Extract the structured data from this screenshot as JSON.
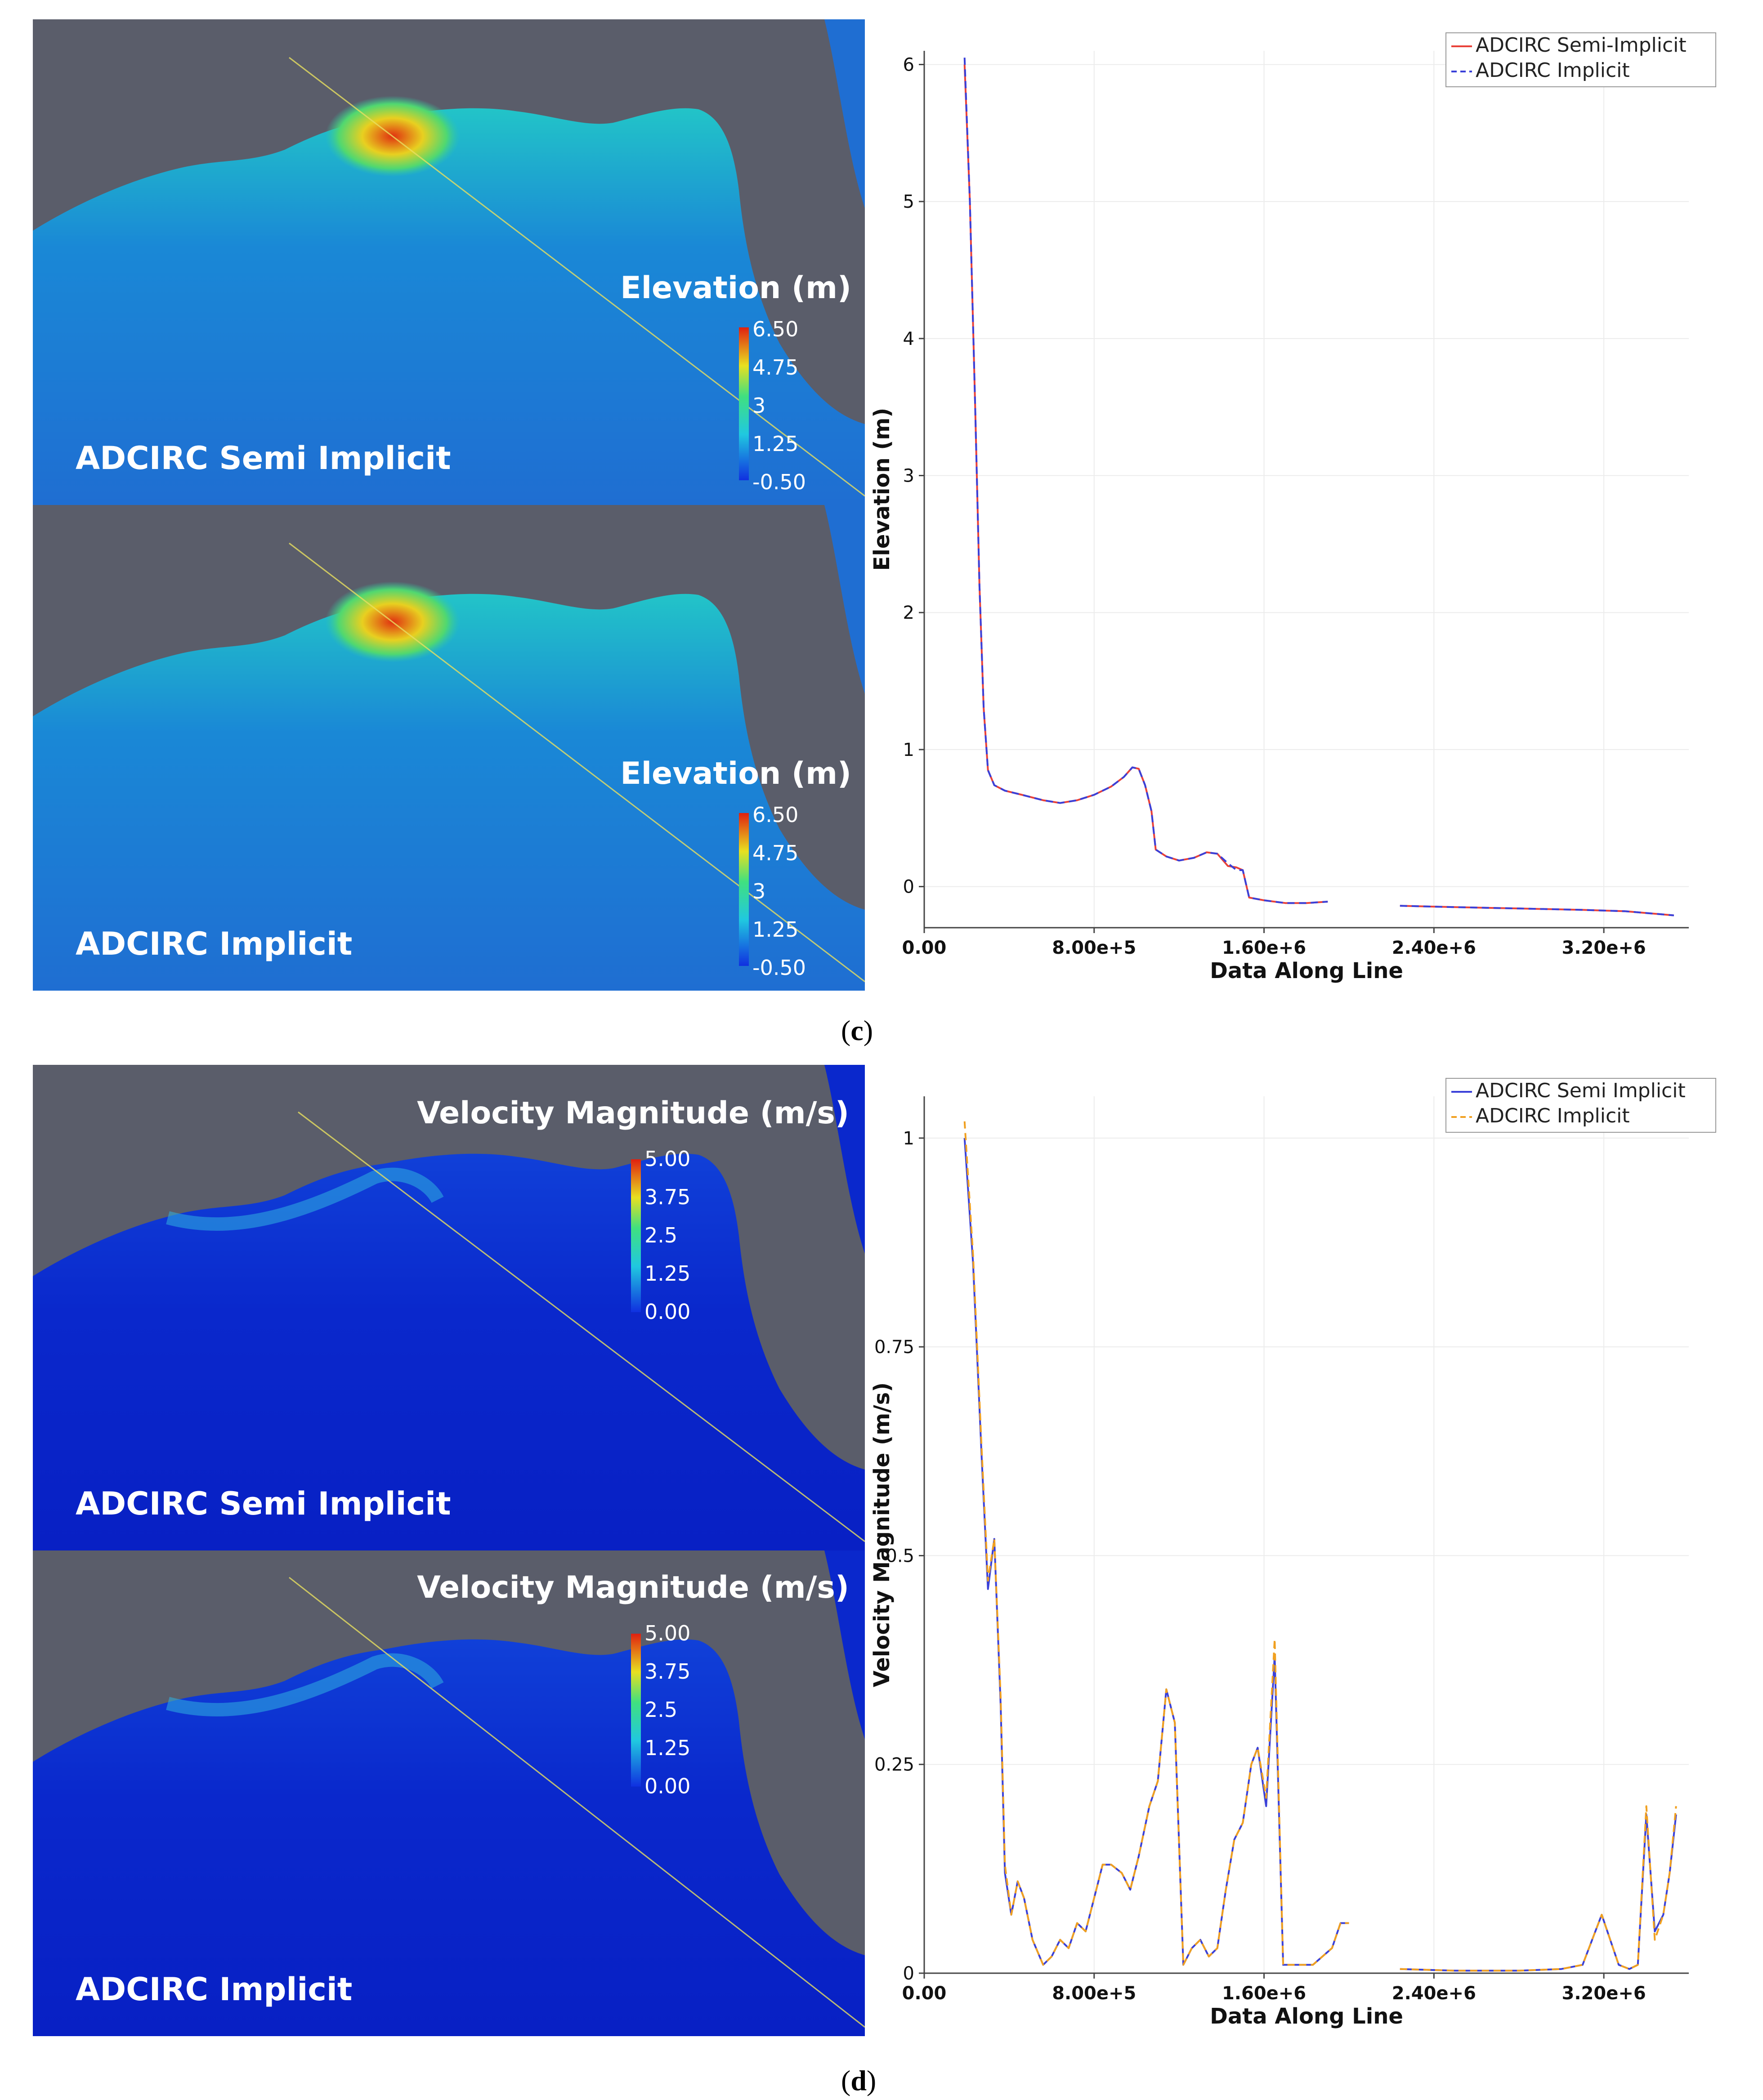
{
  "panels": [
    {
      "id": "c",
      "caption_letter": "c",
      "maps": [
        {
          "name": "ADCIRC Semi Implicit",
          "colorbar_title": "Elevation (m)",
          "ticks": [
            "6.50",
            "4.75",
            "3",
            "1.25",
            "-0.50"
          ]
        },
        {
          "name": "ADCIRC Implicit",
          "colorbar_title": "Elevation (m)",
          "ticks": [
            "6.50",
            "4.75",
            "3",
            "1.25",
            "-0.50"
          ]
        }
      ]
    },
    {
      "id": "d",
      "caption_letter": "d",
      "maps": [
        {
          "name": "ADCIRC Semi Implicit",
          "colorbar_title": "Velocity Magnitude (m/s)",
          "ticks": [
            "5.00",
            "3.75",
            "2.5",
            "1.25",
            "0.00"
          ]
        },
        {
          "name": "ADCIRC Implicit",
          "colorbar_title": "Velocity Magnitude (m/s)",
          "ticks": [
            "5.00",
            "3.75",
            "2.5",
            "1.25",
            "0.00"
          ]
        }
      ]
    }
  ],
  "colors": {
    "land": "#5a5d6a",
    "ocean": "#1b6ed0",
    "ocean_vel": "#0a22c8",
    "red_series": "#e8423a",
    "blue_series": "#3a40d8",
    "orange_series": "#f0a020"
  },
  "chart_data": [
    {
      "type": "line",
      "title": "",
      "xlabel": "Data Along Line",
      "ylabel": "Elevation (m)",
      "xlim": [
        0,
        3600000
      ],
      "ylim": [
        -0.3,
        6.1
      ],
      "xticks": [
        0,
        800000,
        1600000,
        2400000,
        3200000
      ],
      "xtick_labels": [
        "0.00",
        "8.00e+5",
        "1.60e+6",
        "2.40e+6",
        "3.20e+6"
      ],
      "yticks": [
        0,
        1,
        2,
        3,
        4,
        5,
        6
      ],
      "ytick_labels": [
        "0",
        "1",
        "2",
        "3",
        "4",
        "5",
        "6"
      ],
      "grid": true,
      "legend_position": "top-right",
      "series": [
        {
          "name": "ADCIRC Semi-Implicit",
          "color": "#e8423a",
          "dash": "solid",
          "segments": [
            [
              [
                190000,
                6.0
              ],
              [
                215000,
                5.0
              ],
              [
                240000,
                3.5
              ],
              [
                260000,
                2.2
              ],
              [
                280000,
                1.3
              ],
              [
                300000,
                0.85
              ],
              [
                330000,
                0.74
              ],
              [
                380000,
                0.7
              ],
              [
                460000,
                0.67
              ],
              [
                560000,
                0.63
              ],
              [
                640000,
                0.61
              ],
              [
                720000,
                0.63
              ],
              [
                800000,
                0.67
              ],
              [
                880000,
                0.73
              ],
              [
                940000,
                0.8
              ],
              [
                980000,
                0.87
              ],
              [
                1010000,
                0.86
              ],
              [
                1040000,
                0.74
              ],
              [
                1070000,
                0.55
              ],
              [
                1090000,
                0.27
              ],
              [
                1140000,
                0.22
              ],
              [
                1200000,
                0.19
              ],
              [
                1270000,
                0.21
              ],
              [
                1330000,
                0.25
              ],
              [
                1380000,
                0.24
              ],
              [
                1430000,
                0.15
              ],
              [
                1470000,
                0.14
              ],
              [
                1500000,
                0.12
              ],
              [
                1530000,
                -0.08
              ],
              [
                1600000,
                -0.1
              ],
              [
                1700000,
                -0.12
              ],
              [
                1800000,
                -0.12
              ],
              [
                1900000,
                -0.11
              ]
            ],
            [
              [
                2240000,
                -0.14
              ],
              [
                2500000,
                -0.15
              ],
              [
                2800000,
                -0.16
              ],
              [
                3100000,
                -0.17
              ],
              [
                3300000,
                -0.18
              ],
              [
                3530000,
                -0.21
              ]
            ]
          ]
        },
        {
          "name": "ADCIRC Implicit",
          "color": "#3a40d8",
          "dash": "dashed",
          "segments": [
            [
              [
                190000,
                6.05
              ],
              [
                215000,
                5.0
              ],
              [
                240000,
                3.5
              ],
              [
                260000,
                2.2
              ],
              [
                280000,
                1.3
              ],
              [
                300000,
                0.85
              ],
              [
                330000,
                0.74
              ],
              [
                380000,
                0.7
              ],
              [
                460000,
                0.67
              ],
              [
                560000,
                0.63
              ],
              [
                640000,
                0.61
              ],
              [
                720000,
                0.63
              ],
              [
                800000,
                0.67
              ],
              [
                880000,
                0.73
              ],
              [
                940000,
                0.8
              ],
              [
                980000,
                0.87
              ],
              [
                1010000,
                0.86
              ],
              [
                1040000,
                0.74
              ],
              [
                1070000,
                0.55
              ],
              [
                1090000,
                0.27
              ],
              [
                1140000,
                0.22
              ],
              [
                1200000,
                0.19
              ],
              [
                1270000,
                0.21
              ],
              [
                1330000,
                0.25
              ],
              [
                1380000,
                0.24
              ],
              [
                1430000,
                0.17
              ],
              [
                1470000,
                0.12
              ],
              [
                1500000,
                0.12
              ],
              [
                1530000,
                -0.08
              ],
              [
                1600000,
                -0.1
              ],
              [
                1700000,
                -0.12
              ],
              [
                1800000,
                -0.12
              ],
              [
                1900000,
                -0.11
              ]
            ],
            [
              [
                2240000,
                -0.14
              ],
              [
                2500000,
                -0.15
              ],
              [
                2800000,
                -0.16
              ],
              [
                3100000,
                -0.17
              ],
              [
                3300000,
                -0.18
              ],
              [
                3530000,
                -0.21
              ]
            ]
          ]
        }
      ]
    },
    {
      "type": "line",
      "title": "",
      "xlabel": "Data Along Line",
      "ylabel": "Velocity Magnitude (m/s)",
      "xlim": [
        0,
        3600000
      ],
      "ylim": [
        0,
        1.05
      ],
      "xticks": [
        0,
        800000,
        1600000,
        2400000,
        3200000
      ],
      "xtick_labels": [
        "0.00",
        "8.00e+5",
        "1.60e+6",
        "2.40e+6",
        "3.20e+6"
      ],
      "yticks": [
        0,
        0.25,
        0.5,
        0.75,
        1
      ],
      "ytick_labels": [
        "0",
        "0.25",
        "0.5",
        "0.75",
        "1"
      ],
      "grid": true,
      "legend_position": "top-right",
      "series": [
        {
          "name": "ADCIRC Semi Implicit",
          "color": "#3a40d8",
          "dash": "solid",
          "segments": [
            [
              [
                190000,
                1.0
              ],
              [
                230000,
                0.85
              ],
              [
                270000,
                0.62
              ],
              [
                300000,
                0.46
              ],
              [
                330000,
                0.52
              ],
              [
                360000,
                0.32
              ],
              [
                380000,
                0.12
              ],
              [
                410000,
                0.07
              ],
              [
                440000,
                0.11
              ],
              [
                470000,
                0.09
              ],
              [
                510000,
                0.04
              ],
              [
                560000,
                0.01
              ],
              [
                600000,
                0.02
              ],
              [
                640000,
                0.04
              ],
              [
                680000,
                0.03
              ],
              [
                720000,
                0.06
              ],
              [
                760000,
                0.05
              ],
              [
                800000,
                0.09
              ],
              [
                840000,
                0.13
              ],
              [
                880000,
                0.13
              ],
              [
                930000,
                0.12
              ],
              [
                970000,
                0.1
              ],
              [
                1010000,
                0.14
              ],
              [
                1060000,
                0.2
              ],
              [
                1100000,
                0.23
              ],
              [
                1140000,
                0.34
              ],
              [
                1180000,
                0.3
              ],
              [
                1220000,
                0.01
              ],
              [
                1260000,
                0.03
              ],
              [
                1300000,
                0.04
              ],
              [
                1340000,
                0.02
              ],
              [
                1380000,
                0.03
              ],
              [
                1420000,
                0.1
              ],
              [
                1460000,
                0.16
              ],
              [
                1500000,
                0.18
              ],
              [
                1540000,
                0.25
              ],
              [
                1570000,
                0.27
              ],
              [
                1610000,
                0.2
              ],
              [
                1650000,
                0.38
              ],
              [
                1690000,
                0.01
              ],
              [
                1750000,
                0.01
              ],
              [
                1830000,
                0.01
              ],
              [
                1920000,
                0.03
              ],
              [
                1960000,
                0.06
              ],
              [
                2000000,
                0.06
              ]
            ],
            [
              [
                2240000,
                0.005
              ],
              [
                2500000,
                0.003
              ],
              [
                2800000,
                0.003
              ],
              [
                3000000,
                0.005
              ],
              [
                3100000,
                0.01
              ],
              [
                3160000,
                0.05
              ],
              [
                3190000,
                0.07
              ],
              [
                3230000,
                0.04
              ],
              [
                3270000,
                0.01
              ],
              [
                3320000,
                0.005
              ],
              [
                3360000,
                0.01
              ],
              [
                3400000,
                0.19
              ],
              [
                3440000,
                0.05
              ],
              [
                3480000,
                0.07
              ],
              [
                3510000,
                0.12
              ],
              [
                3540000,
                0.19
              ]
            ]
          ]
        },
        {
          "name": "ADCIRC Implicit",
          "color": "#f0a020",
          "dash": "dashed",
          "segments": [
            [
              [
                190000,
                1.02
              ],
              [
                230000,
                0.86
              ],
              [
                270000,
                0.63
              ],
              [
                300000,
                0.47
              ],
              [
                330000,
                0.52
              ],
              [
                360000,
                0.33
              ],
              [
                380000,
                0.13
              ],
              [
                410000,
                0.07
              ],
              [
                440000,
                0.11
              ],
              [
                470000,
                0.09
              ],
              [
                510000,
                0.04
              ],
              [
                560000,
                0.01
              ],
              [
                600000,
                0.02
              ],
              [
                640000,
                0.04
              ],
              [
                680000,
                0.03
              ],
              [
                720000,
                0.06
              ],
              [
                760000,
                0.05
              ],
              [
                800000,
                0.09
              ],
              [
                840000,
                0.13
              ],
              [
                880000,
                0.13
              ],
              [
                930000,
                0.12
              ],
              [
                970000,
                0.1
              ],
              [
                1010000,
                0.14
              ],
              [
                1060000,
                0.2
              ],
              [
                1100000,
                0.23
              ],
              [
                1140000,
                0.34
              ],
              [
                1180000,
                0.3
              ],
              [
                1220000,
                0.01
              ],
              [
                1260000,
                0.03
              ],
              [
                1300000,
                0.04
              ],
              [
                1340000,
                0.02
              ],
              [
                1380000,
                0.03
              ],
              [
                1420000,
                0.1
              ],
              [
                1460000,
                0.16
              ],
              [
                1500000,
                0.18
              ],
              [
                1540000,
                0.25
              ],
              [
                1570000,
                0.27
              ],
              [
                1610000,
                0.21
              ],
              [
                1650000,
                0.4
              ],
              [
                1690000,
                0.01
              ],
              [
                1750000,
                0.01
              ],
              [
                1830000,
                0.01
              ],
              [
                1920000,
                0.03
              ],
              [
                1960000,
                0.06
              ],
              [
                2000000,
                0.06
              ]
            ],
            [
              [
                2240000,
                0.005
              ],
              [
                2500000,
                0.003
              ],
              [
                2800000,
                0.003
              ],
              [
                3000000,
                0.005
              ],
              [
                3100000,
                0.01
              ],
              [
                3160000,
                0.05
              ],
              [
                3190000,
                0.07
              ],
              [
                3230000,
                0.04
              ],
              [
                3270000,
                0.01
              ],
              [
                3320000,
                0.005
              ],
              [
                3360000,
                0.01
              ],
              [
                3400000,
                0.2
              ],
              [
                3440000,
                0.04
              ],
              [
                3480000,
                0.07
              ],
              [
                3510000,
                0.12
              ],
              [
                3540000,
                0.2
              ]
            ]
          ]
        }
      ]
    }
  ]
}
